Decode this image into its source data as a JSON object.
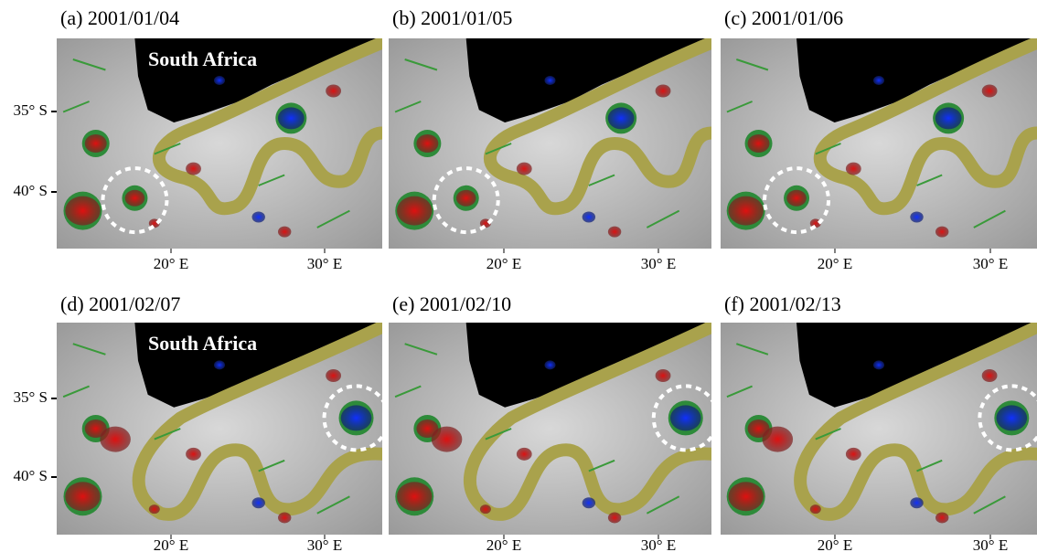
{
  "panels": [
    {
      "title": "(a) 2001/01/04",
      "label": "South Africa"
    },
    {
      "title": "(b) 2001/01/05"
    },
    {
      "title": "(c) 2001/01/06"
    },
    {
      "title": "(d) 2001/02/07",
      "label": "South Africa"
    },
    {
      "title": "(e) 2001/02/10"
    },
    {
      "title": "(f) 2001/02/13"
    }
  ],
  "y_axis_labels": [
    "35° S",
    "40° S"
  ],
  "x_axis_labels": [
    "20° E",
    "30° E"
  ]
}
